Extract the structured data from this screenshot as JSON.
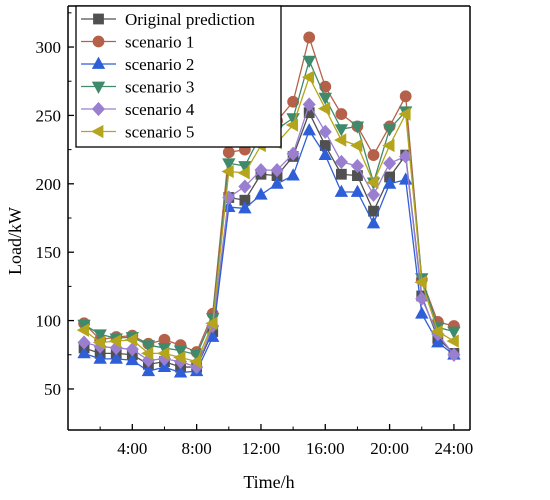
{
  "chart_data": {
    "type": "line",
    "xlabel": "Time/h",
    "ylabel": "Load/kW",
    "x": [
      1,
      2,
      3,
      4,
      5,
      6,
      7,
      8,
      9,
      10,
      11,
      12,
      13,
      14,
      15,
      16,
      17,
      18,
      19,
      20,
      21,
      22,
      23,
      24
    ],
    "xlim": [
      0,
      25
    ],
    "ylim": [
      20,
      330
    ],
    "x_ticks": [
      4,
      8,
      12,
      16,
      20,
      24
    ],
    "x_tick_labels": [
      "4:00",
      "8:00",
      "12:00",
      "16:00",
      "20:00",
      "24:00"
    ],
    "y_ticks": [
      50,
      100,
      150,
      200,
      250,
      300
    ],
    "y_tick_labels": [
      "50",
      "100",
      "150",
      "200",
      "250",
      "300"
    ],
    "legend_position": "top-left",
    "series": [
      {
        "name": "Original prediction",
        "color": "#505050",
        "marker": "square",
        "values": [
          80,
          76,
          76,
          75,
          68,
          70,
          66,
          66,
          92,
          190,
          188,
          207,
          206,
          220,
          252,
          228,
          207,
          206,
          180,
          205,
          221,
          118,
          87,
          76
        ]
      },
      {
        "name": "scenario 1",
        "color": "#b5614a",
        "marker": "circle",
        "values": [
          98,
          86,
          88,
          89,
          83,
          86,
          82,
          77,
          105,
          223,
          225,
          250,
          246,
          260,
          307,
          271,
          251,
          242,
          221,
          242,
          264,
          130,
          99,
          96
        ]
      },
      {
        "name": "scenario 2",
        "color": "#2f5fd8",
        "marker": "triangle-up",
        "values": [
          76,
          72,
          72,
          71,
          63,
          66,
          62,
          63,
          88,
          183,
          182,
          192,
          200,
          206,
          239,
          221,
          194,
          194,
          171,
          200,
          203,
          105,
          84,
          75
        ]
      },
      {
        "name": "scenario 3",
        "color": "#3f8a6b",
        "marker": "triangle-down",
        "values": [
          97,
          90,
          87,
          88,
          82,
          80,
          78,
          75,
          102,
          215,
          213,
          236,
          240,
          248,
          290,
          263,
          240,
          242,
          201,
          240,
          253,
          131,
          95,
          92
        ]
      },
      {
        "name": "scenario 4",
        "color": "#9a7fd1",
        "marker": "diamond",
        "values": [
          84,
          81,
          80,
          79,
          71,
          72,
          70,
          66,
          96,
          190,
          198,
          210,
          210,
          222,
          258,
          238,
          216,
          213,
          192,
          215,
          220,
          116,
          90,
          75
        ]
      },
      {
        "name": "scenario 5",
        "color": "#b5a51c",
        "marker": "triangle-left",
        "values": [
          93,
          84,
          85,
          86,
          76,
          76,
          73,
          70,
          98,
          209,
          208,
          228,
          230,
          243,
          278,
          255,
          232,
          228,
          201,
          228,
          251,
          128,
          92,
          85
        ]
      }
    ]
  }
}
